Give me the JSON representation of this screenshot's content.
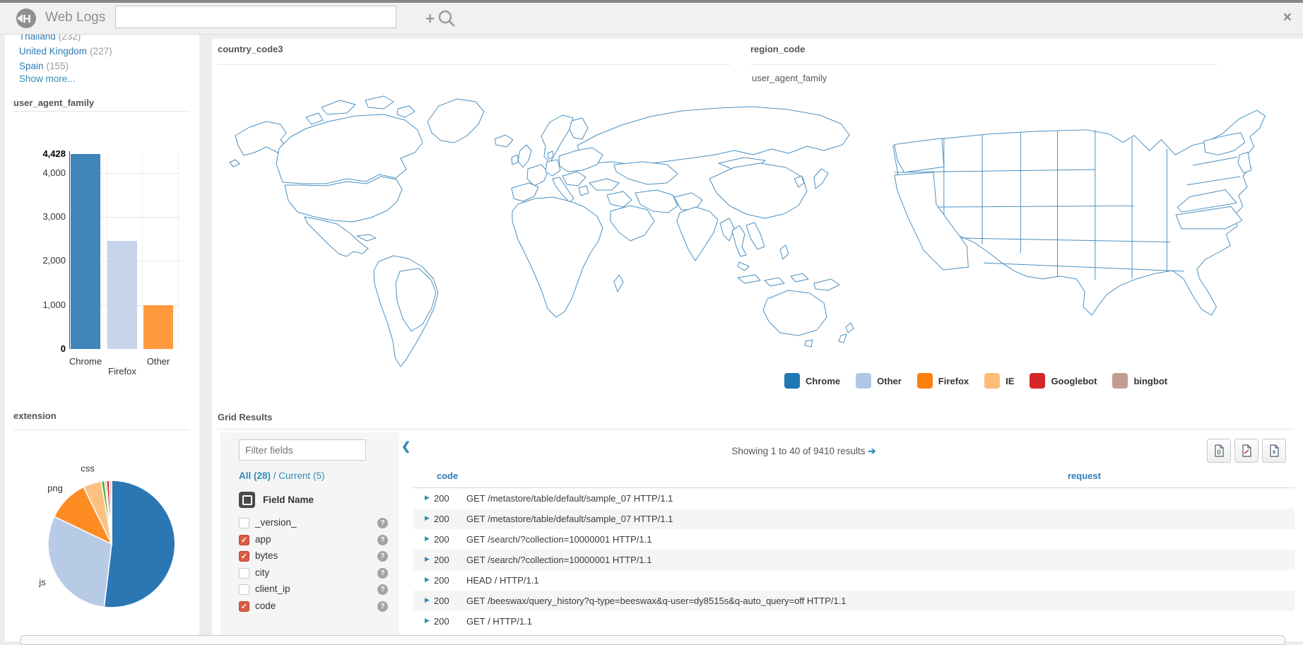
{
  "topbar": {
    "title": "Web Logs",
    "search_value": ""
  },
  "icons": {
    "add": "+",
    "close": "×",
    "collapse": "❮",
    "caret": "▶",
    "arrow": "➔",
    "help": "?",
    "check": "✓"
  },
  "sidebar": {
    "facets": [
      {
        "label": "Thailand",
        "count": "(232)"
      },
      {
        "label": "United Kingdom",
        "count": "(227)"
      },
      {
        "label": "Spain",
        "count": "(155)"
      }
    ],
    "show_more": "Show more..."
  },
  "legend": [
    {
      "label": "Chrome",
      "color": "#1f77b4"
    },
    {
      "label": "Other",
      "color": "#aec7e8"
    },
    {
      "label": "Firefox",
      "color": "#ff7f0e"
    },
    {
      "label": "IE",
      "color": "#ffbb78"
    },
    {
      "label": "Googlebot",
      "color": "#d62728"
    },
    {
      "label": "bingbot",
      "color": "#c49c94"
    }
  ],
  "grid": {
    "title": "Grid Results",
    "filter_placeholder": "Filter fields",
    "all_label": "All (28)",
    "slash": " / ",
    "current_label": "Current (5)",
    "field_header": "Field Name",
    "fields": [
      {
        "name": "_version_",
        "checked": false
      },
      {
        "name": "app",
        "checked": true
      },
      {
        "name": "bytes",
        "checked": true
      },
      {
        "name": "city",
        "checked": false
      },
      {
        "name": "client_ip",
        "checked": false
      },
      {
        "name": "code",
        "checked": true
      }
    ],
    "showing": "Showing 1 to 40 of 9410 results",
    "columns": {
      "code": "code",
      "request": "request"
    },
    "export_buttons": [
      "json",
      "csv",
      "xls"
    ],
    "rows": [
      {
        "code": "200",
        "request": "GET /metastore/table/default/sample_07 HTTP/1.1"
      },
      {
        "code": "200",
        "request": "GET /metastore/table/default/sample_07 HTTP/1.1"
      },
      {
        "code": "200",
        "request": "GET /search/?collection=10000001 HTTP/1.1"
      },
      {
        "code": "200",
        "request": "GET /search/?collection=10000001 HTTP/1.1"
      },
      {
        "code": "200",
        "request": "HEAD / HTTP/1.1"
      },
      {
        "code": "200",
        "request": "GET /beeswax/query_history?q-type=beeswax&q-user=dy8515s&q-auto_query=off HTTP/1.1"
      },
      {
        "code": "200",
        "request": "GET / HTTP/1.1"
      }
    ]
  },
  "chart_data": [
    {
      "type": "bar",
      "title": "user_agent_family",
      "categories": [
        "Chrome",
        "Firefox",
        "Other"
      ],
      "values": [
        4428,
        2450,
        1000
      ],
      "colors": [
        "#3f86b8",
        "#c6d4ec",
        "#ff9a3e"
      ],
      "ylim": [
        0,
        4428
      ],
      "yticks": [
        {
          "label": "4,428",
          "value": 4428,
          "bold": true
        },
        {
          "label": "4,000",
          "value": 4000,
          "bold": false
        },
        {
          "label": "3,000",
          "value": 3000,
          "bold": false
        },
        {
          "label": "2,000",
          "value": 2000,
          "bold": false
        },
        {
          "label": "1,000",
          "value": 1000,
          "bold": false
        },
        {
          "label": "0",
          "value": 0,
          "bold": true
        }
      ]
    },
    {
      "type": "pie",
      "title": "extension",
      "slices": [
        {
          "label": "",
          "value": 51.9,
          "color": "#2b77b4"
        },
        {
          "label": "js",
          "value": 30.2,
          "color": "#b7cbe7"
        },
        {
          "label": "png",
          "value": 10.6,
          "color": "#fd8c22"
        },
        {
          "label": "css",
          "value": 4.7,
          "color": "#fcc080"
        },
        {
          "label": "",
          "value": 0.8,
          "color": "#4ba336"
        },
        {
          "label": "",
          "value": 0.5,
          "color": "#98d884"
        },
        {
          "label": "",
          "value": 0.7,
          "color": "#d62728"
        },
        {
          "label": "",
          "value": 0.6,
          "color": "#f2b8c6"
        }
      ]
    },
    {
      "type": "choropleth",
      "title": "country_code3",
      "palette": {
        "dark": "#3d87ba",
        "medium": "#65a3cf",
        "light": "#cfe0f2"
      },
      "countries": [
        {
          "name": "canada",
          "level": "light"
        },
        {
          "name": "arctic-islands",
          "level": "light"
        },
        {
          "name": "brazil",
          "level": "light"
        },
        {
          "name": "iceland",
          "level": "dark"
        },
        {
          "name": "scandinavia",
          "level": "light"
        },
        {
          "name": "germany",
          "level": "light"
        },
        {
          "name": "spain",
          "level": "light"
        },
        {
          "name": "italy",
          "level": "light"
        },
        {
          "name": "iran",
          "level": "light"
        },
        {
          "name": "saudi-arabia",
          "level": "dark"
        },
        {
          "name": "india",
          "level": "medium"
        },
        {
          "name": "china",
          "level": "dark"
        },
        {
          "name": "thailand",
          "level": "light"
        },
        {
          "name": "australia",
          "level": "light"
        }
      ]
    },
    {
      "type": "choropleth",
      "title": "region_code",
      "series": "user_agent_family",
      "states": [
        {
          "name": "washington",
          "category": "bingbot"
        },
        {
          "name": "california",
          "category": "Googlebot"
        },
        {
          "name": "new-york",
          "category": "Other"
        },
        {
          "name": "new-jersey",
          "category": "Chrome"
        },
        {
          "name": "virginia",
          "category": "Firefox"
        },
        {
          "name": "north-carolina",
          "category": "Other"
        }
      ]
    }
  ]
}
